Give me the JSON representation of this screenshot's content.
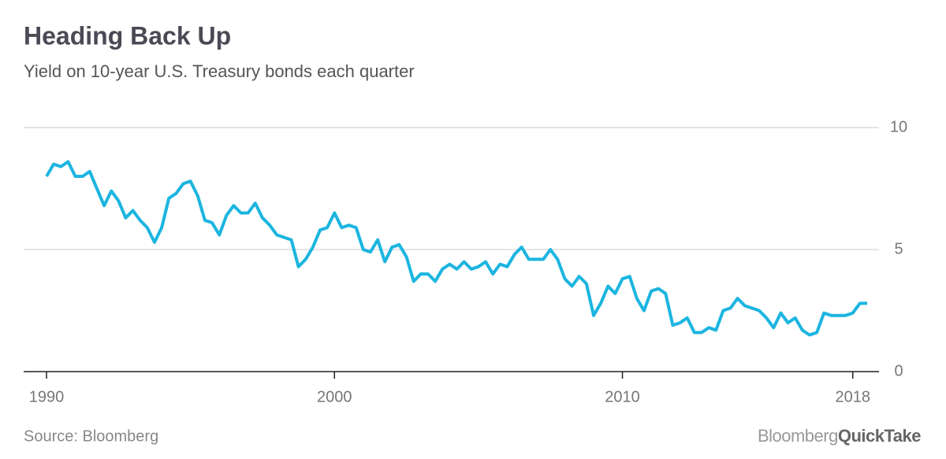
{
  "chart_data": {
    "type": "line",
    "title": "Heading Back Up",
    "subtitle": "Yield on 10-year U.S. Treasury bonds each quarter",
    "source": "Source: Bloomberg",
    "brand": [
      "Bloomberg",
      "QuickTake"
    ],
    "x": [
      1990,
      1990.25,
      1990.5,
      1990.75,
      1991,
      1991.25,
      1991.5,
      1991.75,
      1992,
      1992.25,
      1992.5,
      1992.75,
      1993,
      1993.25,
      1993.5,
      1993.75,
      1994,
      1994.25,
      1994.5,
      1994.75,
      1995,
      1995.25,
      1995.5,
      1995.75,
      1996,
      1996.25,
      1996.5,
      1996.75,
      1997,
      1997.25,
      1997.5,
      1997.75,
      1998,
      1998.25,
      1998.5,
      1998.75,
      1999,
      1999.25,
      1999.5,
      1999.75,
      2000,
      2000.25,
      2000.5,
      2000.75,
      2001,
      2001.25,
      2001.5,
      2001.75,
      2002,
      2002.25,
      2002.5,
      2002.75,
      2003,
      2003.25,
      2003.5,
      2003.75,
      2004,
      2004.25,
      2004.5,
      2004.75,
      2005,
      2005.25,
      2005.5,
      2005.75,
      2006,
      2006.25,
      2006.5,
      2006.75,
      2007,
      2007.25,
      2007.5,
      2007.75,
      2008,
      2008.25,
      2008.5,
      2008.75,
      2009,
      2009.25,
      2009.5,
      2009.75,
      2010,
      2010.25,
      2010.5,
      2010.75,
      2011,
      2011.25,
      2011.5,
      2011.75,
      2012,
      2012.25,
      2012.5,
      2012.75,
      2013,
      2013.25,
      2013.5,
      2013.75,
      2014,
      2014.25,
      2014.5,
      2014.75,
      2015,
      2015.25,
      2015.5,
      2015.75,
      2016,
      2016.25,
      2016.5,
      2016.75,
      2017,
      2017.25,
      2017.5,
      2017.75,
      2018,
      2018.25,
      2018.5
    ],
    "series": [
      {
        "name": "10-year yield",
        "color": "#1cb5e0",
        "values": [
          8.0,
          8.5,
          8.4,
          8.6,
          8.0,
          8.0,
          8.2,
          7.5,
          6.8,
          7.4,
          7.0,
          6.3,
          6.6,
          6.2,
          5.9,
          5.3,
          5.9,
          7.1,
          7.3,
          7.7,
          7.8,
          7.2,
          6.2,
          6.1,
          5.6,
          6.4,
          6.8,
          6.5,
          6.5,
          6.9,
          6.3,
          6.0,
          5.6,
          5.5,
          5.4,
          4.3,
          4.6,
          5.1,
          5.8,
          5.9,
          6.5,
          5.9,
          6.0,
          5.9,
          5.0,
          4.9,
          5.4,
          4.5,
          5.1,
          5.2,
          4.7,
          3.7,
          4.0,
          4.0,
          3.7,
          4.2,
          4.4,
          4.2,
          4.5,
          4.2,
          4.3,
          4.5,
          4.0,
          4.4,
          4.3,
          4.8,
          5.1,
          4.6,
          4.6,
          4.6,
          5.0,
          4.6,
          3.8,
          3.5,
          3.9,
          3.6,
          2.3,
          2.8,
          3.5,
          3.2,
          3.8,
          3.9,
          3.0,
          2.5,
          3.3,
          3.4,
          3.2,
          1.9,
          2.0,
          2.2,
          1.6,
          1.6,
          1.8,
          1.7,
          2.5,
          2.6,
          3.0,
          2.7,
          2.6,
          2.5,
          2.2,
          1.8,
          2.4,
          2.0,
          2.2,
          1.7,
          1.5,
          1.6,
          2.4,
          2.3,
          2.3,
          2.3,
          2.4,
          2.8,
          2.8
        ]
      }
    ],
    "xlim": [
      1990,
      2018.5
    ],
    "xticks": [
      1990,
      2000,
      2010,
      2018
    ],
    "ylim": [
      0,
      10
    ],
    "yticks": [
      0,
      5,
      10
    ],
    "grid": true
  }
}
